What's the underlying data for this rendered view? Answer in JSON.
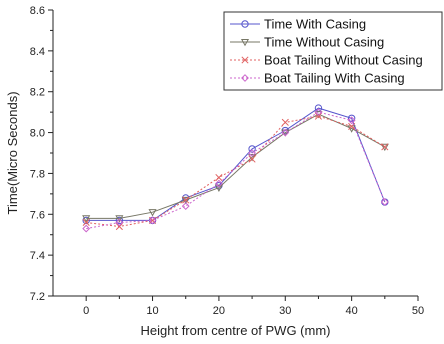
{
  "chart_data": {
    "type": "line",
    "title": "",
    "xlabel": "Height from centre of PWG (mm)",
    "ylabel": "Time(Micro Seconds)",
    "xlim": [
      -5,
      50
    ],
    "ylim": [
      7.2,
      8.6
    ],
    "xticks": [
      0,
      10,
      20,
      30,
      40,
      50
    ],
    "yticks": [
      7.2,
      7.4,
      7.6,
      7.8,
      8.0,
      8.2,
      8.4,
      8.6
    ],
    "ytick_labels": [
      "7.2",
      "7.4",
      "7.6",
      "7.8",
      "8.0",
      "8.2",
      "8.4",
      "8.6"
    ],
    "legend_position": "top-right",
    "grid": false,
    "series": [
      {
        "name": "Time With Casing",
        "color": "#5555cc",
        "marker": "circle",
        "dash": "solid",
        "x": [
          0,
          5,
          10,
          15,
          20,
          25,
          30,
          35,
          40,
          45
        ],
        "y": [
          7.57,
          7.57,
          7.57,
          7.68,
          7.74,
          7.92,
          8.01,
          8.12,
          8.07,
          7.66
        ]
      },
      {
        "name": "Time Without Casing",
        "color": "#777766",
        "marker": "triangle-down",
        "dash": "solid",
        "x": [
          0,
          5,
          10,
          15,
          20,
          25,
          30,
          35,
          40,
          45
        ],
        "y": [
          7.58,
          7.58,
          7.61,
          7.67,
          7.73,
          7.88,
          8.0,
          8.09,
          8.02,
          7.93
        ]
      },
      {
        "name": "Boat Tailing Without Casing",
        "color": "#e06060",
        "marker": "x",
        "dash": "dotted",
        "x": [
          0,
          5,
          10,
          15,
          20,
          25,
          30,
          35,
          40,
          45
        ],
        "y": [
          7.56,
          7.54,
          7.57,
          7.67,
          7.78,
          7.87,
          8.05,
          8.08,
          8.03,
          7.93
        ]
      },
      {
        "name": "Boat Tailing With Casing",
        "color": "#cc66cc",
        "marker": "diamond",
        "dash": "dotted",
        "x": [
          0,
          5,
          10,
          15,
          20,
          25,
          30,
          35,
          40,
          45
        ],
        "y": [
          7.53,
          7.56,
          7.57,
          7.64,
          7.75,
          7.9,
          8.0,
          8.1,
          8.06,
          7.66
        ]
      }
    ]
  }
}
